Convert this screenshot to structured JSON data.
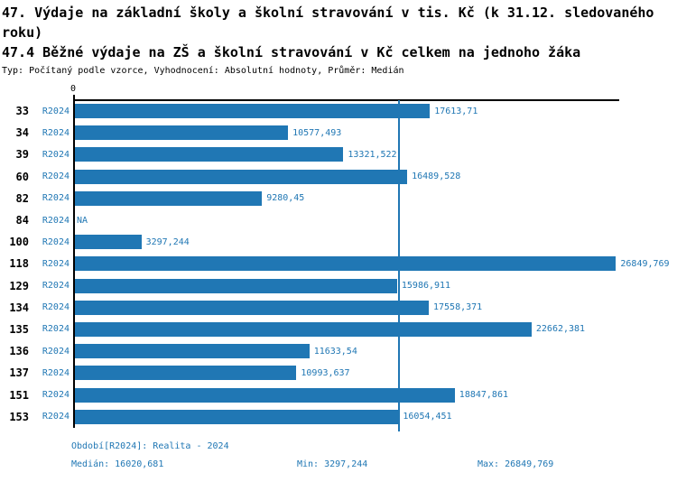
{
  "header": {
    "title_line1": "47. Výdaje na základní školy a školní stravování v tis. Kč (k 31.12. sledovaného",
    "title_line2": "roku)",
    "title_line3": "47.4 Běžné výdaje na ZŠ a školní stravování v Kč celkem na jednoho žáka",
    "meta": "Typ: Počítaný podle vzorce, Vyhodnocení: Absolutní hodnoty, Průměr: Medián"
  },
  "chart_data": {
    "type": "bar",
    "orientation": "horizontal",
    "title": "47.4 Běžné výdaje na ZŠ a školní stravování v Kč celkem na jednoho žáka",
    "categories": [
      "33",
      "34",
      "39",
      "60",
      "82",
      "84",
      "100",
      "118",
      "129",
      "134",
      "135",
      "136",
      "137",
      "151",
      "153"
    ],
    "series_label": "R2024",
    "values": [
      17613.71,
      10577.493,
      13321.522,
      16489.528,
      9280.45,
      null,
      3297.244,
      26849.769,
      15986.911,
      17558.371,
      22662.381,
      11633.54,
      10993.637,
      18847.861,
      16054.451
    ],
    "value_labels": [
      "17613,71",
      "10577,493",
      "13321,522",
      "16489,528",
      "9280,45",
      "NA",
      "3297,244",
      "26849,769",
      "15986,911",
      "17558,371",
      "22662,381",
      "11633,54",
      "10993,637",
      "18847,861",
      "16054,451"
    ],
    "na_label": "NA",
    "xlim": [
      0,
      27100
    ],
    "zero_tick_label": "0",
    "median_value": 16020.681,
    "bar_color": "#2077b4",
    "median_line_color": "#2077b4",
    "grid": false,
    "legend": false
  },
  "footer": {
    "period_label": "Období[R2024]: Realita - 2024",
    "median_label": "Medián: 16020,681",
    "min_label": "Min: 3297,244",
    "max_label": "Max: 26849,769"
  },
  "colors": {
    "accent_blue": "#2077b4",
    "axis_black": "#000000",
    "background": "#ffffff"
  }
}
